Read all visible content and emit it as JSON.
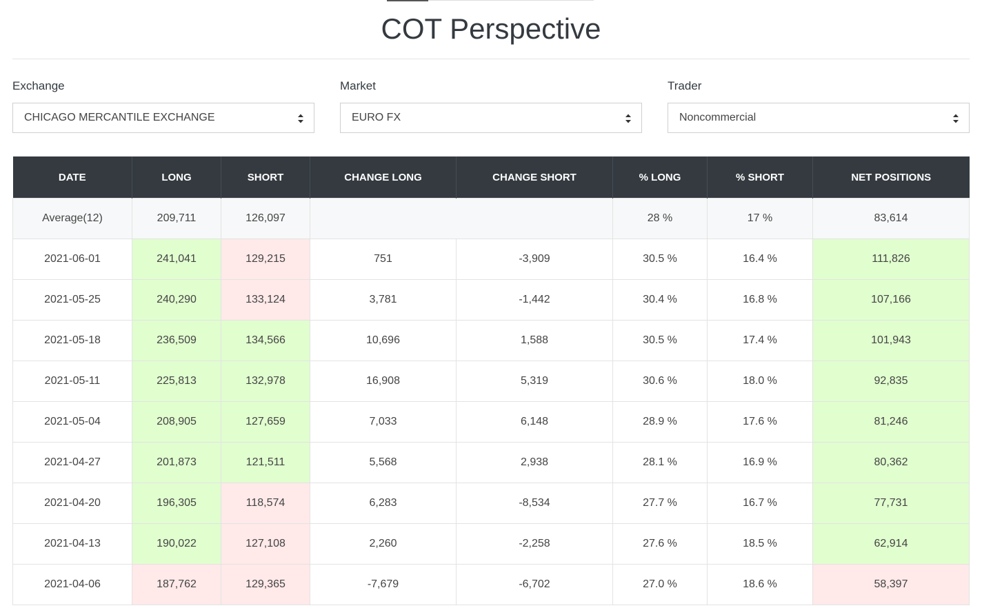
{
  "page": {
    "title": "COT Perspective"
  },
  "filters": {
    "exchange": {
      "label": "Exchange",
      "value": "CHICAGO MERCANTILE EXCHANGE"
    },
    "market": {
      "label": "Market",
      "value": "EURO FX"
    },
    "trader": {
      "label": "Trader",
      "value": "Noncommercial"
    }
  },
  "colors": {
    "header_bg": "#343a40",
    "positive_cell": "#e1fecf",
    "negative_cell": "#ffe9e9"
  },
  "table": {
    "columns": [
      "DATE",
      "LONG",
      "SHORT",
      "CHANGE LONG",
      "CHANGE SHORT",
      "% LONG",
      "% SHORT",
      "NET POSITIONS"
    ],
    "average": {
      "label": "Average(12)",
      "long": "209,711",
      "short": "126,097",
      "change_long": "",
      "change_short": "",
      "pct_long": "28 %",
      "pct_short": "17 %",
      "net": "83,614"
    },
    "rows": [
      {
        "date": "2021-06-01",
        "long": "241,041",
        "long_trend": "pos",
        "short": "129,215",
        "short_trend": "neg",
        "change_long": "751",
        "change_short": "-3,909",
        "pct_long": "30.5 %",
        "pct_short": "16.4 %",
        "net": "111,826",
        "net_trend": "pos"
      },
      {
        "date": "2021-05-25",
        "long": "240,290",
        "long_trend": "pos",
        "short": "133,124",
        "short_trend": "neg",
        "change_long": "3,781",
        "change_short": "-1,442",
        "pct_long": "30.4 %",
        "pct_short": "16.8 %",
        "net": "107,166",
        "net_trend": "pos"
      },
      {
        "date": "2021-05-18",
        "long": "236,509",
        "long_trend": "pos",
        "short": "134,566",
        "short_trend": "pos",
        "change_long": "10,696",
        "change_short": "1,588",
        "pct_long": "30.5 %",
        "pct_short": "17.4 %",
        "net": "101,943",
        "net_trend": "pos"
      },
      {
        "date": "2021-05-11",
        "long": "225,813",
        "long_trend": "pos",
        "short": "132,978",
        "short_trend": "pos",
        "change_long": "16,908",
        "change_short": "5,319",
        "pct_long": "30.6 %",
        "pct_short": "18.0 %",
        "net": "92,835",
        "net_trend": "pos"
      },
      {
        "date": "2021-05-04",
        "long": "208,905",
        "long_trend": "pos",
        "short": "127,659",
        "short_trend": "pos",
        "change_long": "7,033",
        "change_short": "6,148",
        "pct_long": "28.9 %",
        "pct_short": "17.6 %",
        "net": "81,246",
        "net_trend": "pos"
      },
      {
        "date": "2021-04-27",
        "long": "201,873",
        "long_trend": "pos",
        "short": "121,511",
        "short_trend": "pos",
        "change_long": "5,568",
        "change_short": "2,938",
        "pct_long": "28.1 %",
        "pct_short": "16.9 %",
        "net": "80,362",
        "net_trend": "pos"
      },
      {
        "date": "2021-04-20",
        "long": "196,305",
        "long_trend": "pos",
        "short": "118,574",
        "short_trend": "neg",
        "change_long": "6,283",
        "change_short": "-8,534",
        "pct_long": "27.7 %",
        "pct_short": "16.7 %",
        "net": "77,731",
        "net_trend": "pos"
      },
      {
        "date": "2021-04-13",
        "long": "190,022",
        "long_trend": "pos",
        "short": "127,108",
        "short_trend": "neg",
        "change_long": "2,260",
        "change_short": "-2,258",
        "pct_long": "27.6 %",
        "pct_short": "18.5 %",
        "net": "62,914",
        "net_trend": "pos"
      },
      {
        "date": "2021-04-06",
        "long": "187,762",
        "long_trend": "neg",
        "short": "129,365",
        "short_trend": "neg",
        "change_long": "-7,679",
        "change_short": "-6,702",
        "pct_long": "27.0 %",
        "pct_short": "18.6 %",
        "net": "58,397",
        "net_trend": "neg"
      }
    ]
  }
}
